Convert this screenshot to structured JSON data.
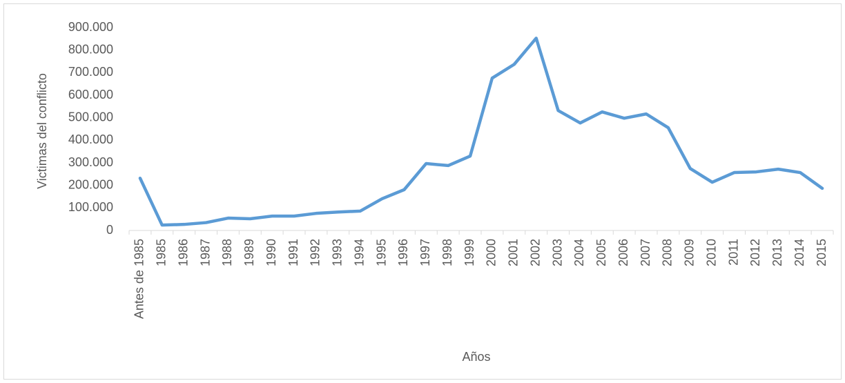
{
  "chart_data": {
    "type": "line",
    "x_label": "Años",
    "y_label": "Victimas del conflicto",
    "categories": [
      "Antes de 1985",
      "1985",
      "1986",
      "1987",
      "1988",
      "1989",
      "1990",
      "1991",
      "1992",
      "1993",
      "1994",
      "1995",
      "1996",
      "1997",
      "1998",
      "1999",
      "2000",
      "2001",
      "2002",
      "2003",
      "2004",
      "2005",
      "2006",
      "2007",
      "2008",
      "2009",
      "2010",
      "2011",
      "2012",
      "2013",
      "2014",
      "2015"
    ],
    "series": [
      {
        "name": "Victimas del conflicto",
        "color": "#5b9bd5",
        "values": [
          232000,
          24000,
          27000,
          35000,
          55000,
          52000,
          64000,
          64000,
          76000,
          82000,
          86000,
          141000,
          181000,
          297000,
          288000,
          330000,
          676000,
          737000,
          853000,
          532000,
          477000,
          526000,
          498000,
          517000,
          456000,
          275000,
          214000,
          257000,
          260000,
          272000,
          257000,
          187000
        ]
      }
    ],
    "ylim": [
      0,
      900000
    ],
    "yticks": [
      0,
      {
        "value": 100000,
        "label": "100.000"
      },
      {
        "value": 200000,
        "label": "200.000"
      },
      {
        "value": 300000,
        "label": "300.000"
      },
      {
        "value": 400000,
        "label": "400.000"
      },
      {
        "value": 500000,
        "label": "500.000"
      },
      {
        "value": 600000,
        "label": "600.000"
      },
      {
        "value": 700000,
        "label": "700.000"
      },
      {
        "value": 800000,
        "label": "800.000"
      },
      {
        "value": 900000,
        "label": "900.000"
      }
    ],
    "grid": false
  }
}
